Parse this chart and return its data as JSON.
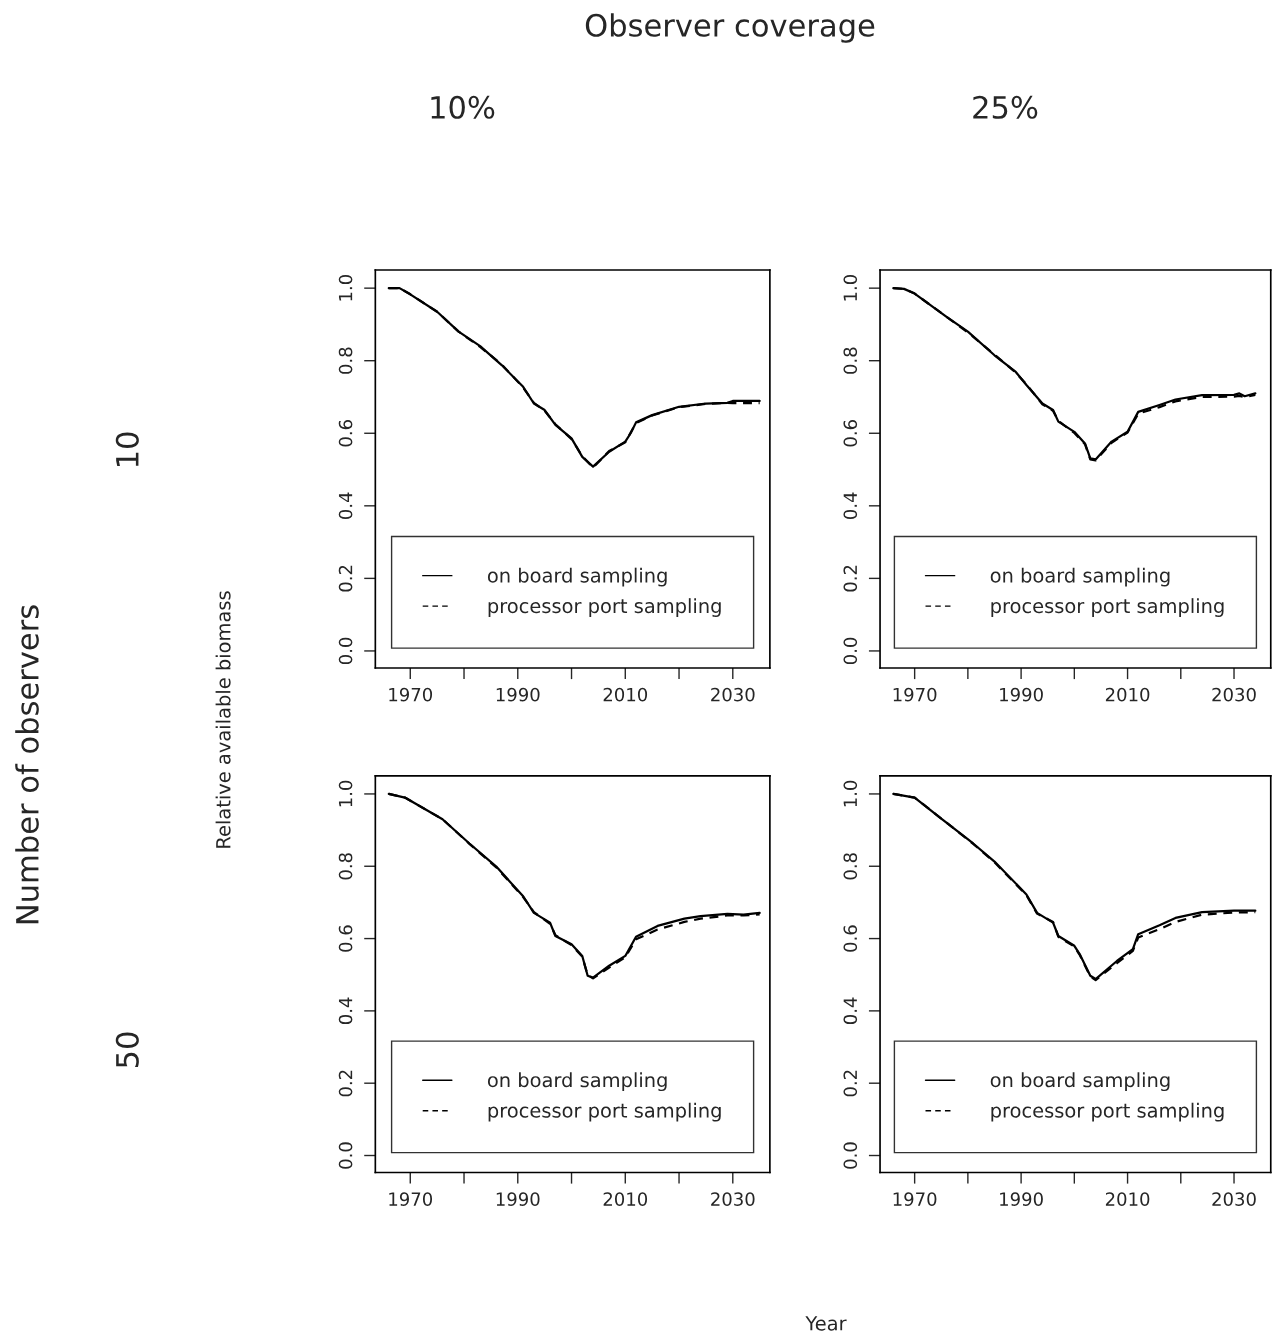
{
  "chart_data": [
    {
      "type": "line",
      "title": "10%",
      "ylabel": "10",
      "annotations": [
        "Observer coverage",
        "Number of observers",
        "Relative available biomass",
        "Year"
      ],
      "legend": "bottom",
      "xlim": [
        1963.5,
        2036.9
      ],
      "ylim": [
        -0.047,
        1.05
      ],
      "xticks": [
        1970,
        {
          "value": 1980,
          "label": null
        },
        1990,
        {
          "value": 2000,
          "label": null
        },
        2010,
        {
          "value": 2020,
          "label": null
        },
        2030
      ],
      "yticks": [
        {
          "value": 0,
          "label": "0.0"
        },
        {
          "value": 0.2,
          "label": "0.2"
        },
        {
          "value": 0.4,
          "label": "0.4"
        },
        {
          "value": 0.6,
          "label": "0.6"
        },
        {
          "value": 0.8,
          "label": "0.8"
        },
        {
          "value": 1.0,
          "label": "1.0"
        }
      ],
      "x": [
        1966,
        1968,
        1970,
        1975,
        1979,
        1983,
        1987,
        1991,
        1993,
        1995,
        1997,
        2000,
        2002,
        2004,
        2007,
        2010,
        2011,
        2012,
        2015,
        2020,
        2025,
        2029,
        2030,
        2035
      ],
      "series": [
        {
          "name": "on board sampling",
          "color": "#000000",
          "line_style": "solid",
          "values": [
            1.0,
            1.0,
            0.983,
            0.935,
            0.88,
            0.84,
            0.788,
            0.728,
            0.682,
            0.664,
            0.623,
            0.586,
            0.535,
            0.508,
            0.549,
            0.577,
            0.6,
            0.63,
            0.65,
            0.673,
            0.682,
            0.684,
            0.689,
            0.689
          ]
        },
        {
          "name": "processor port sampling",
          "color": "#000000",
          "line_style": "dashed",
          "values": [
            1.0,
            1.0,
            0.983,
            0.935,
            0.88,
            0.838,
            0.79,
            0.726,
            0.684,
            0.662,
            0.625,
            0.584,
            0.537,
            0.505,
            0.551,
            0.575,
            0.602,
            0.628,
            0.649,
            0.672,
            0.681,
            0.684,
            0.683,
            0.683
          ]
        }
      ]
    },
    {
      "type": "line",
      "title": "25%",
      "legend": "bottom",
      "xlim": [
        1963.5,
        2036.9
      ],
      "ylim": [
        -0.047,
        1.05
      ],
      "xticks": [
        1970,
        {
          "value": 1980,
          "label": null
        },
        1990,
        {
          "value": 2000,
          "label": null
        },
        2010,
        {
          "value": 2020,
          "label": null
        },
        2030
      ],
      "yticks": [
        {
          "value": 0,
          "label": "0.0"
        },
        {
          "value": 0.2,
          "label": "0.2"
        },
        {
          "value": 0.4,
          "label": "0.4"
        },
        {
          "value": 0.6,
          "label": "0.6"
        },
        {
          "value": 0.8,
          "label": "0.8"
        },
        {
          "value": 1.0,
          "label": "1.0"
        }
      ],
      "x": [
        1966,
        1968,
        1970,
        1976,
        1980,
        1985,
        1989,
        1991,
        1994,
        1996,
        1997,
        2000,
        2002,
        2003,
        2004,
        2007,
        2010,
        2012,
        2016,
        2019,
        2024,
        2030,
        2031,
        2032,
        2034
      ],
      "series": [
        {
          "name": "on board sampling",
          "color": "#000000",
          "line_style": "solid",
          "values": [
            1.0,
            0.998,
            0.985,
            0.921,
            0.88,
            0.815,
            0.769,
            0.733,
            0.682,
            0.664,
            0.632,
            0.604,
            0.572,
            0.531,
            0.528,
            0.577,
            0.604,
            0.659,
            0.678,
            0.693,
            0.705,
            0.706,
            0.71,
            0.702,
            0.71
          ]
        },
        {
          "name": "processor port sampling",
          "color": "#000000",
          "line_style": "dashed",
          "values": [
            1.0,
            0.998,
            0.985,
            0.921,
            0.878,
            0.817,
            0.767,
            0.735,
            0.68,
            0.662,
            0.634,
            0.601,
            0.57,
            0.528,
            0.525,
            0.574,
            0.602,
            0.654,
            0.672,
            0.688,
            0.7,
            0.701,
            0.703,
            0.7,
            0.706
          ]
        }
      ]
    },
    {
      "type": "line",
      "ylabel": "50",
      "legend": "bottom",
      "xlim": [
        1963.5,
        2036.9
      ],
      "ylim": [
        -0.047,
        1.05
      ],
      "xticks": [
        1970,
        {
          "value": 1980,
          "label": null
        },
        1990,
        {
          "value": 2000,
          "label": null
        },
        2010,
        {
          "value": 2020,
          "label": null
        },
        2030
      ],
      "yticks": [
        {
          "value": 0,
          "label": "0.0"
        },
        {
          "value": 0.2,
          "label": "0.2"
        },
        {
          "value": 0.4,
          "label": "0.4"
        },
        {
          "value": 0.6,
          "label": "0.6"
        },
        {
          "value": 0.8,
          "label": "0.8"
        },
        {
          "value": 1.0,
          "label": "1.0"
        }
      ],
      "x": [
        1966,
        1969,
        1976,
        1981,
        1986,
        1991,
        1993,
        1996,
        1997,
        2000,
        2002,
        2003,
        2004,
        2007,
        2010,
        2012,
        2016,
        2021,
        2024,
        2029,
        2032,
        2035
      ],
      "series": [
        {
          "name": "on board sampling",
          "color": "#000000",
          "line_style": "solid",
          "values": [
            1.0,
            0.99,
            0.93,
            0.863,
            0.799,
            0.717,
            0.671,
            0.644,
            0.607,
            0.584,
            0.552,
            0.497,
            0.492,
            0.525,
            0.552,
            0.605,
            0.635,
            0.655,
            0.662,
            0.668,
            0.666,
            0.671
          ]
        },
        {
          "name": "processor port sampling",
          "color": "#000000",
          "line_style": "dashed",
          "values": [
            1.0,
            0.99,
            0.93,
            0.862,
            0.797,
            0.715,
            0.673,
            0.641,
            0.609,
            0.582,
            0.55,
            0.499,
            0.49,
            0.52,
            0.548,
            0.598,
            0.625,
            0.646,
            0.655,
            0.664,
            0.664,
            0.667
          ]
        }
      ]
    },
    {
      "type": "line",
      "legend": "bottom",
      "xlim": [
        1963.5,
        2036.9
      ],
      "ylim": [
        -0.047,
        1.05
      ],
      "xticks": [
        1970,
        {
          "value": 1980,
          "label": null
        },
        1990,
        {
          "value": 2000,
          "label": null
        },
        2010,
        {
          "value": 2020,
          "label": null
        },
        2030
      ],
      "yticks": [
        {
          "value": 0,
          "label": "0.0"
        },
        {
          "value": 0.2,
          "label": "0.2"
        },
        {
          "value": 0.4,
          "label": "0.4"
        },
        {
          "value": 0.6,
          "label": "0.6"
        },
        {
          "value": 0.8,
          "label": "0.8"
        },
        {
          "value": 1.0,
          "label": "1.0"
        }
      ],
      "x": [
        1966,
        1970,
        1975,
        1981,
        1985,
        1991,
        1993,
        1996,
        1997,
        2000,
        2001,
        2003,
        2004,
        2008,
        2011,
        2012,
        2016,
        2019,
        2024,
        2030,
        2034
      ],
      "series": [
        {
          "name": "on board sampling",
          "color": "#000000",
          "line_style": "solid",
          "values": [
            1.0,
            0.99,
            0.932,
            0.863,
            0.813,
            0.722,
            0.671,
            0.644,
            0.607,
            0.58,
            0.557,
            0.497,
            0.488,
            0.538,
            0.571,
            0.612,
            0.637,
            0.657,
            0.673,
            0.677,
            0.677
          ]
        },
        {
          "name": "processor port sampling",
          "color": "#000000",
          "line_style": "dashed",
          "values": [
            1.0,
            0.99,
            0.932,
            0.862,
            0.811,
            0.72,
            0.669,
            0.646,
            0.605,
            0.578,
            0.555,
            0.495,
            0.485,
            0.532,
            0.566,
            0.603,
            0.626,
            0.646,
            0.666,
            0.672,
            0.673
          ]
        }
      ]
    }
  ]
}
